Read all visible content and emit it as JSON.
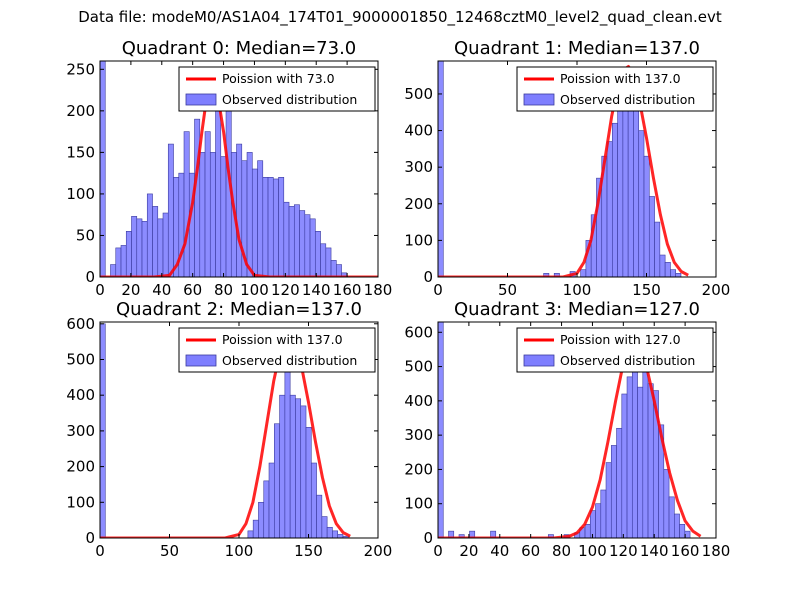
{
  "figure": {
    "suptitle": "Data file: modeM0/AS1A04_174T01_9000001850_12468cztM0_level2_quad_clean.evt"
  },
  "colors": {
    "bars": "#7f7fff",
    "bar_edge": "#3b3b9e",
    "curve": "#ff0000"
  },
  "chart_data": [
    {
      "type": "bar",
      "title": "Quadrant 0: Median=73.0",
      "median": 73.0,
      "xlim": [
        0,
        180
      ],
      "ylim": [
        0,
        260
      ],
      "xticks": [
        0,
        20,
        40,
        60,
        80,
        100,
        120,
        140,
        160,
        180
      ],
      "yticks": [
        0,
        50,
        100,
        150,
        200,
        250
      ],
      "legend": {
        "curve": "Poission with 73.0",
        "bars": "Observed distribution",
        "location": "upper right"
      },
      "bin_width": 3.4,
      "bins_start": [
        0,
        6.8,
        10.2,
        13.6,
        17,
        20.4,
        23.8,
        27.2,
        30.6,
        34,
        37.4,
        40.8,
        44.2,
        47.6,
        51,
        54.4,
        57.8,
        61.2,
        64.6,
        68,
        71.4,
        74.8,
        78.2,
        81.6,
        85,
        88.4,
        91.8,
        95.2,
        98.6,
        102,
        105.4,
        108.8,
        112.2,
        115.6,
        119,
        122.4,
        125.8,
        129.2,
        132.6,
        136,
        139.4,
        142.8,
        146.2,
        149.6,
        153,
        156.4
      ],
      "counts": [
        260,
        15,
        35,
        38,
        55,
        73,
        70,
        67,
        100,
        85,
        70,
        77,
        160,
        120,
        125,
        175,
        125,
        190,
        150,
        175,
        150,
        210,
        145,
        225,
        150,
        160,
        140,
        150,
        130,
        140,
        120,
        120,
        118,
        120,
        90,
        85,
        87,
        80,
        75,
        70,
        55,
        40,
        35,
        20,
        15,
        5
      ],
      "curve_x": [
        0,
        35,
        45,
        50,
        55,
        60,
        63,
        66,
        69,
        71,
        73,
        75,
        77,
        80,
        83,
        86,
        90,
        95,
        100,
        110,
        130,
        180
      ],
      "curve_y": [
        0,
        0,
        2,
        15,
        40,
        90,
        130,
        175,
        215,
        235,
        245,
        235,
        210,
        175,
        130,
        90,
        45,
        15,
        2,
        0,
        0,
        0
      ]
    },
    {
      "type": "bar",
      "title": "Quadrant 1: Median=137.0",
      "median": 137.0,
      "xlim": [
        0,
        200
      ],
      "ylim": [
        0,
        590
      ],
      "xticks": [
        0,
        50,
        100,
        150,
        200
      ],
      "yticks": [
        0,
        100,
        200,
        300,
        400,
        500
      ],
      "legend": {
        "curve": "Poission with 137.0",
        "bars": "Observed distribution",
        "location": "upper right"
      },
      "bin_width": 3.8,
      "bins_start": [
        0,
        76,
        83.6,
        95,
        102.6,
        106.4,
        110.2,
        114,
        117.8,
        121.6,
        125.4,
        129.2,
        133,
        136.8,
        140.6,
        144.4,
        148.2,
        152,
        155.8,
        159.6,
        163.4,
        167.2,
        171
      ],
      "counts": [
        590,
        10,
        10,
        15,
        20,
        100,
        170,
        270,
        330,
        370,
        420,
        500,
        540,
        560,
        460,
        400,
        330,
        220,
        150,
        60,
        40,
        20,
        10
      ],
      "curve_x": [
        0,
        90,
        100,
        105,
        110,
        115,
        120,
        125,
        130,
        135,
        137,
        140,
        145,
        150,
        155,
        160,
        165,
        170,
        175,
        180
      ],
      "curve_y": [
        0,
        0,
        10,
        40,
        100,
        200,
        320,
        440,
        530,
        570,
        575,
        560,
        480,
        380,
        270,
        170,
        90,
        40,
        15,
        5
      ]
    },
    {
      "type": "bar",
      "title": "Quadrant 2: Median=137.0",
      "median": 137.0,
      "xlim": [
        0,
        200
      ],
      "ylim": [
        0,
        605
      ],
      "xticks": [
        0,
        50,
        100,
        150,
        200
      ],
      "yticks": [
        0,
        100,
        200,
        300,
        400,
        500,
        600
      ],
      "legend": {
        "curve": "Poission with 137.0",
        "bars": "Observed distribution",
        "location": "upper right"
      },
      "bin_width": 3.8,
      "bins_start": [
        0,
        106.4,
        110.2,
        114,
        117.8,
        121.6,
        125.4,
        129.2,
        133,
        136.8,
        140.6,
        144.4,
        148.2,
        152,
        155.8,
        159.6,
        163.4,
        167.2,
        171,
        174.8
      ],
      "counts": [
        600,
        20,
        50,
        100,
        160,
        210,
        320,
        400,
        470,
        400,
        390,
        370,
        310,
        210,
        120,
        60,
        30,
        20,
        10,
        5
      ],
      "curve_x": [
        0,
        90,
        100,
        105,
        110,
        115,
        120,
        125,
        130,
        135,
        137,
        140,
        145,
        150,
        155,
        160,
        165,
        170,
        175,
        180
      ],
      "curve_y": [
        0,
        0,
        10,
        40,
        100,
        200,
        320,
        440,
        530,
        570,
        575,
        560,
        480,
        380,
        270,
        170,
        90,
        40,
        15,
        5
      ]
    },
    {
      "type": "bar",
      "title": "Quadrant 3: Median=127.0",
      "median": 127.0,
      "xlim": [
        0,
        180
      ],
      "ylim": [
        0,
        630
      ],
      "xticks": [
        0,
        20,
        40,
        60,
        80,
        100,
        120,
        140,
        160,
        180
      ],
      "yticks": [
        0,
        100,
        200,
        300,
        400,
        500,
        600
      ],
      "legend": {
        "curve": "Poission with 127.0",
        "bars": "Observed distribution",
        "location": "upper right"
      },
      "bin_width": 3.4,
      "bins_start": [
        0,
        6.8,
        13.6,
        20.4,
        34,
        71.4,
        81.6,
        88.4,
        91.8,
        95.2,
        98.6,
        102,
        105.4,
        108.8,
        112.2,
        115.6,
        119,
        122.4,
        125.8,
        129.2,
        132.6,
        136,
        139.4,
        142.8,
        146.2,
        149.6,
        153,
        156.4,
        159.8
      ],
      "counts": [
        630,
        20,
        10,
        20,
        20,
        10,
        10,
        15,
        30,
        40,
        80,
        100,
        140,
        220,
        270,
        320,
        420,
        470,
        520,
        440,
        500,
        450,
        430,
        330,
        200,
        120,
        70,
        40,
        20
      ],
      "curve_x": [
        0,
        75,
        85,
        90,
        95,
        100,
        105,
        110,
        115,
        120,
        125,
        127,
        130,
        135,
        140,
        145,
        150,
        155,
        160,
        165,
        170
      ],
      "curve_y": [
        0,
        0,
        5,
        15,
        40,
        90,
        170,
        280,
        400,
        510,
        590,
        600,
        580,
        500,
        400,
        290,
        190,
        110,
        50,
        20,
        5
      ]
    }
  ]
}
